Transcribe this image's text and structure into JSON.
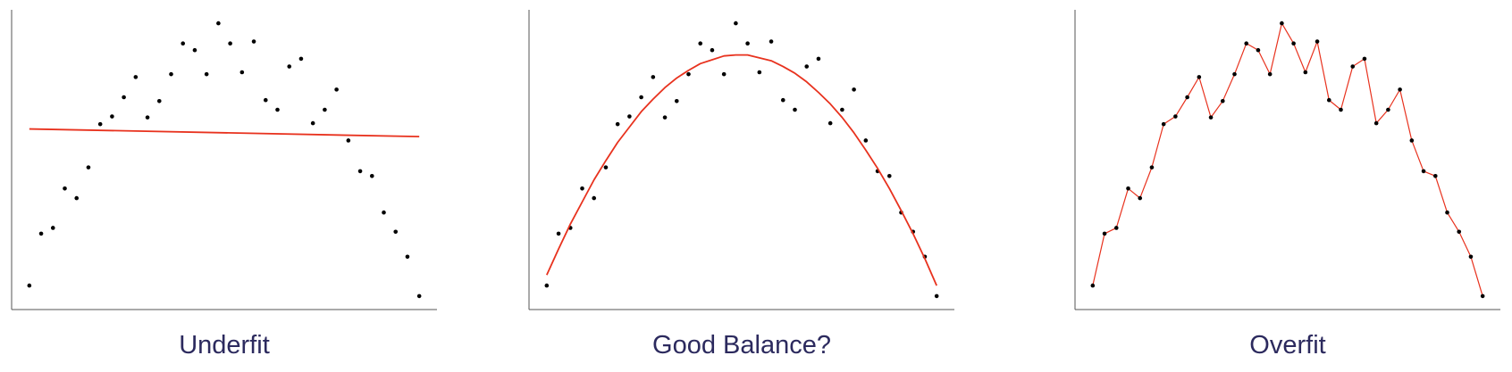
{
  "chart_data": [
    {
      "type": "scatter",
      "title": "Underfit",
      "xlim": [
        -0.5,
        35.5
      ],
      "ylim": [
        0,
        312
      ],
      "x": [
        1,
        2,
        3,
        4,
        5,
        6,
        7,
        8,
        9,
        10,
        11,
        12,
        13,
        14,
        15,
        16,
        17,
        18,
        19,
        20,
        21,
        22,
        23,
        24,
        25,
        26,
        27,
        28,
        29,
        30,
        31,
        32,
        33,
        34
      ],
      "series": [
        {
          "mode": "markers",
          "color": "#000000",
          "values": [
            25,
            79,
            85,
            126,
            116,
            148,
            193,
            201,
            221,
            242,
            200,
            217,
            245,
            277,
            270,
            245,
            298,
            277,
            247,
            279,
            218,
            208,
            253,
            261,
            194,
            208,
            229,
            176,
            144,
            139,
            101,
            81,
            55,
            14
          ]
        },
        {
          "mode": "lines",
          "color": "#e8321e",
          "x": [
            1,
            34
          ],
          "values": [
            188,
            180
          ]
        }
      ]
    },
    {
      "type": "scatter",
      "title": "Good Balance?",
      "xlim": [
        -0.5,
        35.5
      ],
      "ylim": [
        0,
        312
      ],
      "x": [
        1,
        2,
        3,
        4,
        5,
        6,
        7,
        8,
        9,
        10,
        11,
        12,
        13,
        14,
        15,
        16,
        17,
        18,
        19,
        20,
        21,
        22,
        23,
        24,
        25,
        26,
        27,
        28,
        29,
        30,
        31,
        32,
        33,
        34
      ],
      "series": [
        {
          "mode": "markers",
          "color": "#000000",
          "values": [
            25,
            79,
            85,
            126,
            116,
            148,
            193,
            201,
            221,
            242,
            200,
            217,
            245,
            277,
            270,
            245,
            298,
            277,
            247,
            279,
            218,
            208,
            253,
            261,
            194,
            208,
            229,
            176,
            144,
            139,
            101,
            81,
            55,
            14
          ]
        },
        {
          "mode": "lines",
          "color": "#e8321e",
          "values": [
            36,
            63,
            89,
            112,
            135,
            155,
            174,
            190,
            206,
            219,
            231,
            241,
            249,
            256,
            260,
            264,
            265,
            265,
            262,
            259,
            253,
            246,
            237,
            226,
            214,
            200,
            184,
            166,
            147,
            126,
            103,
            79,
            53,
            25
          ]
        }
      ]
    },
    {
      "type": "scatter",
      "title": "Overfit",
      "xlim": [
        -0.5,
        35.5
      ],
      "ylim": [
        0,
        312
      ],
      "x": [
        1,
        2,
        3,
        4,
        5,
        6,
        7,
        8,
        9,
        10,
        11,
        12,
        13,
        14,
        15,
        16,
        17,
        18,
        19,
        20,
        21,
        22,
        23,
        24,
        25,
        26,
        27,
        28,
        29,
        30,
        31,
        32,
        33,
        34
      ],
      "series": [
        {
          "mode": "lines+markers",
          "color": "#000000",
          "line_color": "#e8321e",
          "values": [
            25,
            79,
            85,
            126,
            116,
            148,
            193,
            201,
            221,
            242,
            200,
            217,
            245,
            277,
            270,
            245,
            298,
            277,
            247,
            279,
            218,
            208,
            253,
            261,
            194,
            208,
            229,
            176,
            144,
            139,
            101,
            81,
            55,
            14
          ]
        }
      ]
    }
  ]
}
